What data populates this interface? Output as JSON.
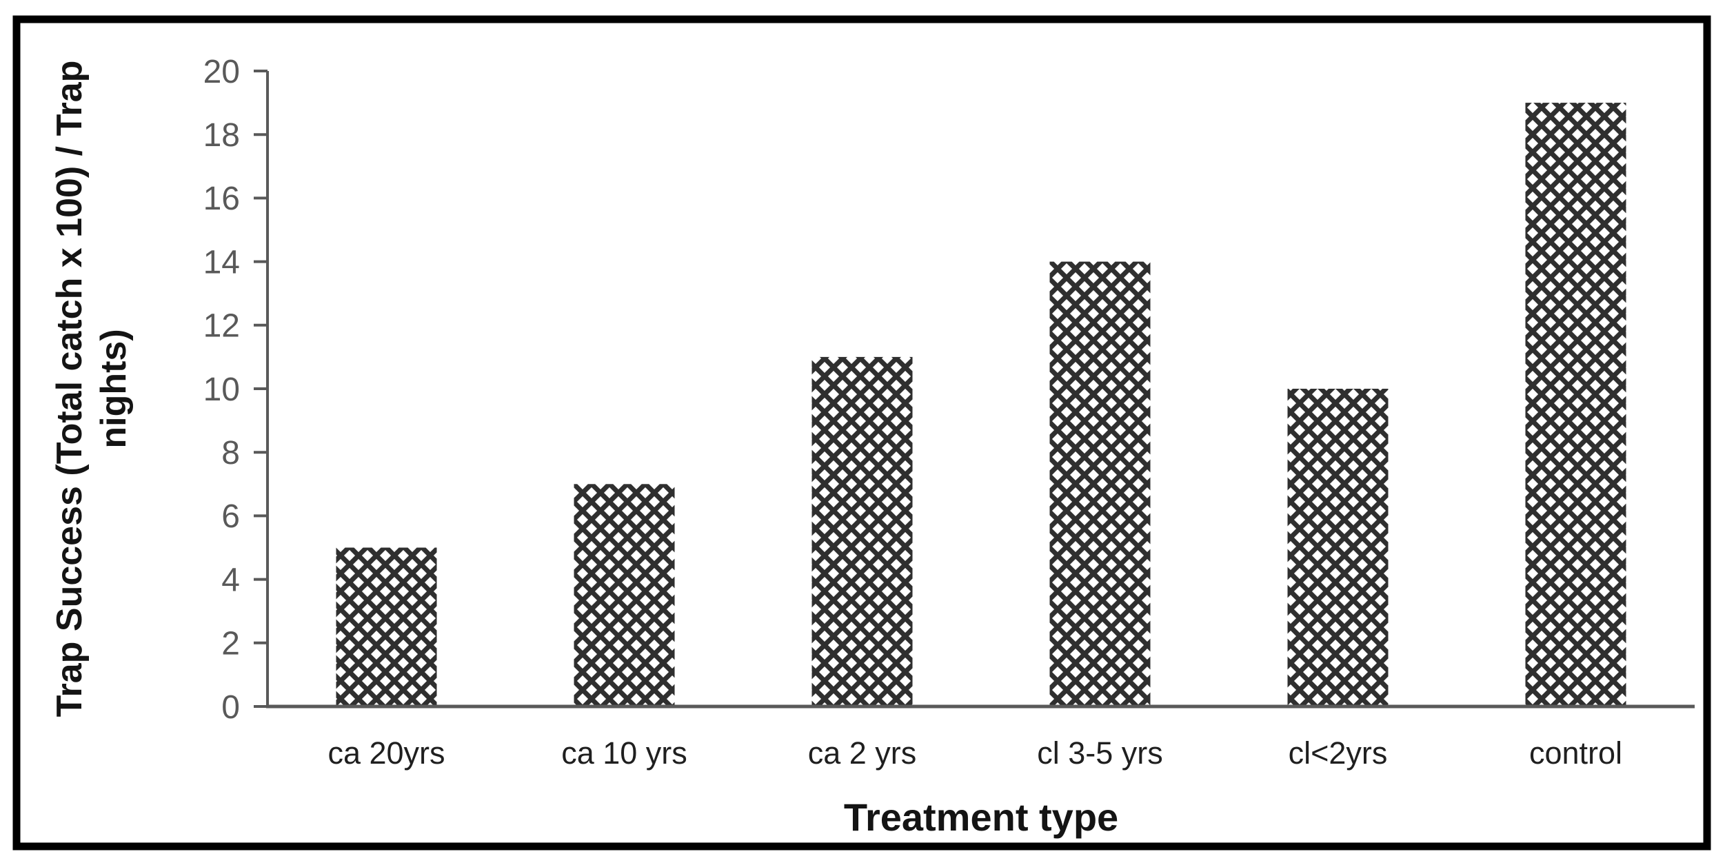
{
  "chart_data": {
    "type": "bar",
    "title": "",
    "categories": [
      "ca 20yrs",
      "ca 10 yrs",
      "ca 2 yrs",
      "cl 3-5 yrs",
      "cl<2yrs",
      "control"
    ],
    "values": [
      5,
      7,
      11,
      14,
      10,
      19
    ],
    "xlabel": "Treatment type",
    "ylabel": "Trap Success (Total catch x 100) / Trap nights)",
    "ylabel_line1": "Trap Success (Total catch x 100) / Trap",
    "ylabel_line2": "nights)",
    "ylim": [
      0,
      20
    ],
    "ytick_step": 2,
    "yticks": [
      0,
      2,
      4,
      6,
      8,
      10,
      12,
      14,
      16,
      18,
      20
    ],
    "grid": false,
    "legend": "none",
    "bar_fill_style": "diamond-crosshatch-pattern",
    "colors": {
      "axis": "#595959",
      "tick_label": "#595959",
      "category_label": "#1f1f1f",
      "axis_title": "#141414",
      "pattern_stroke": "#2f2f2f",
      "bar_background": "#ffffff",
      "frame_border": "#000000",
      "background": "#ffffff"
    }
  }
}
